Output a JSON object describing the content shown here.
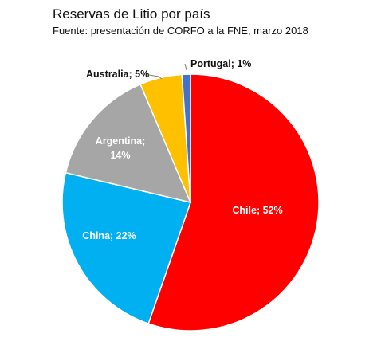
{
  "chart_data": {
    "type": "pie",
    "title": "Reservas de Litio por país",
    "subtitle": "Fuente: presentación de CORFO a la FNE, marzo 2018",
    "categories": [
      "Chile",
      "China",
      "Argentina",
      "Australia",
      "Portugal"
    ],
    "values": [
      52,
      22,
      14,
      5,
      1
    ],
    "unit": "%",
    "labels": [
      "Chile; 52%",
      "China; 22%",
      "Argentina;",
      "14%",
      "Australia; 5%",
      "Portugal; 1%"
    ],
    "colors": [
      "#ff0000",
      "#00b0f0",
      "#a6a6a6",
      "#ffc000",
      "#4472c4"
    ],
    "legend": "none"
  }
}
